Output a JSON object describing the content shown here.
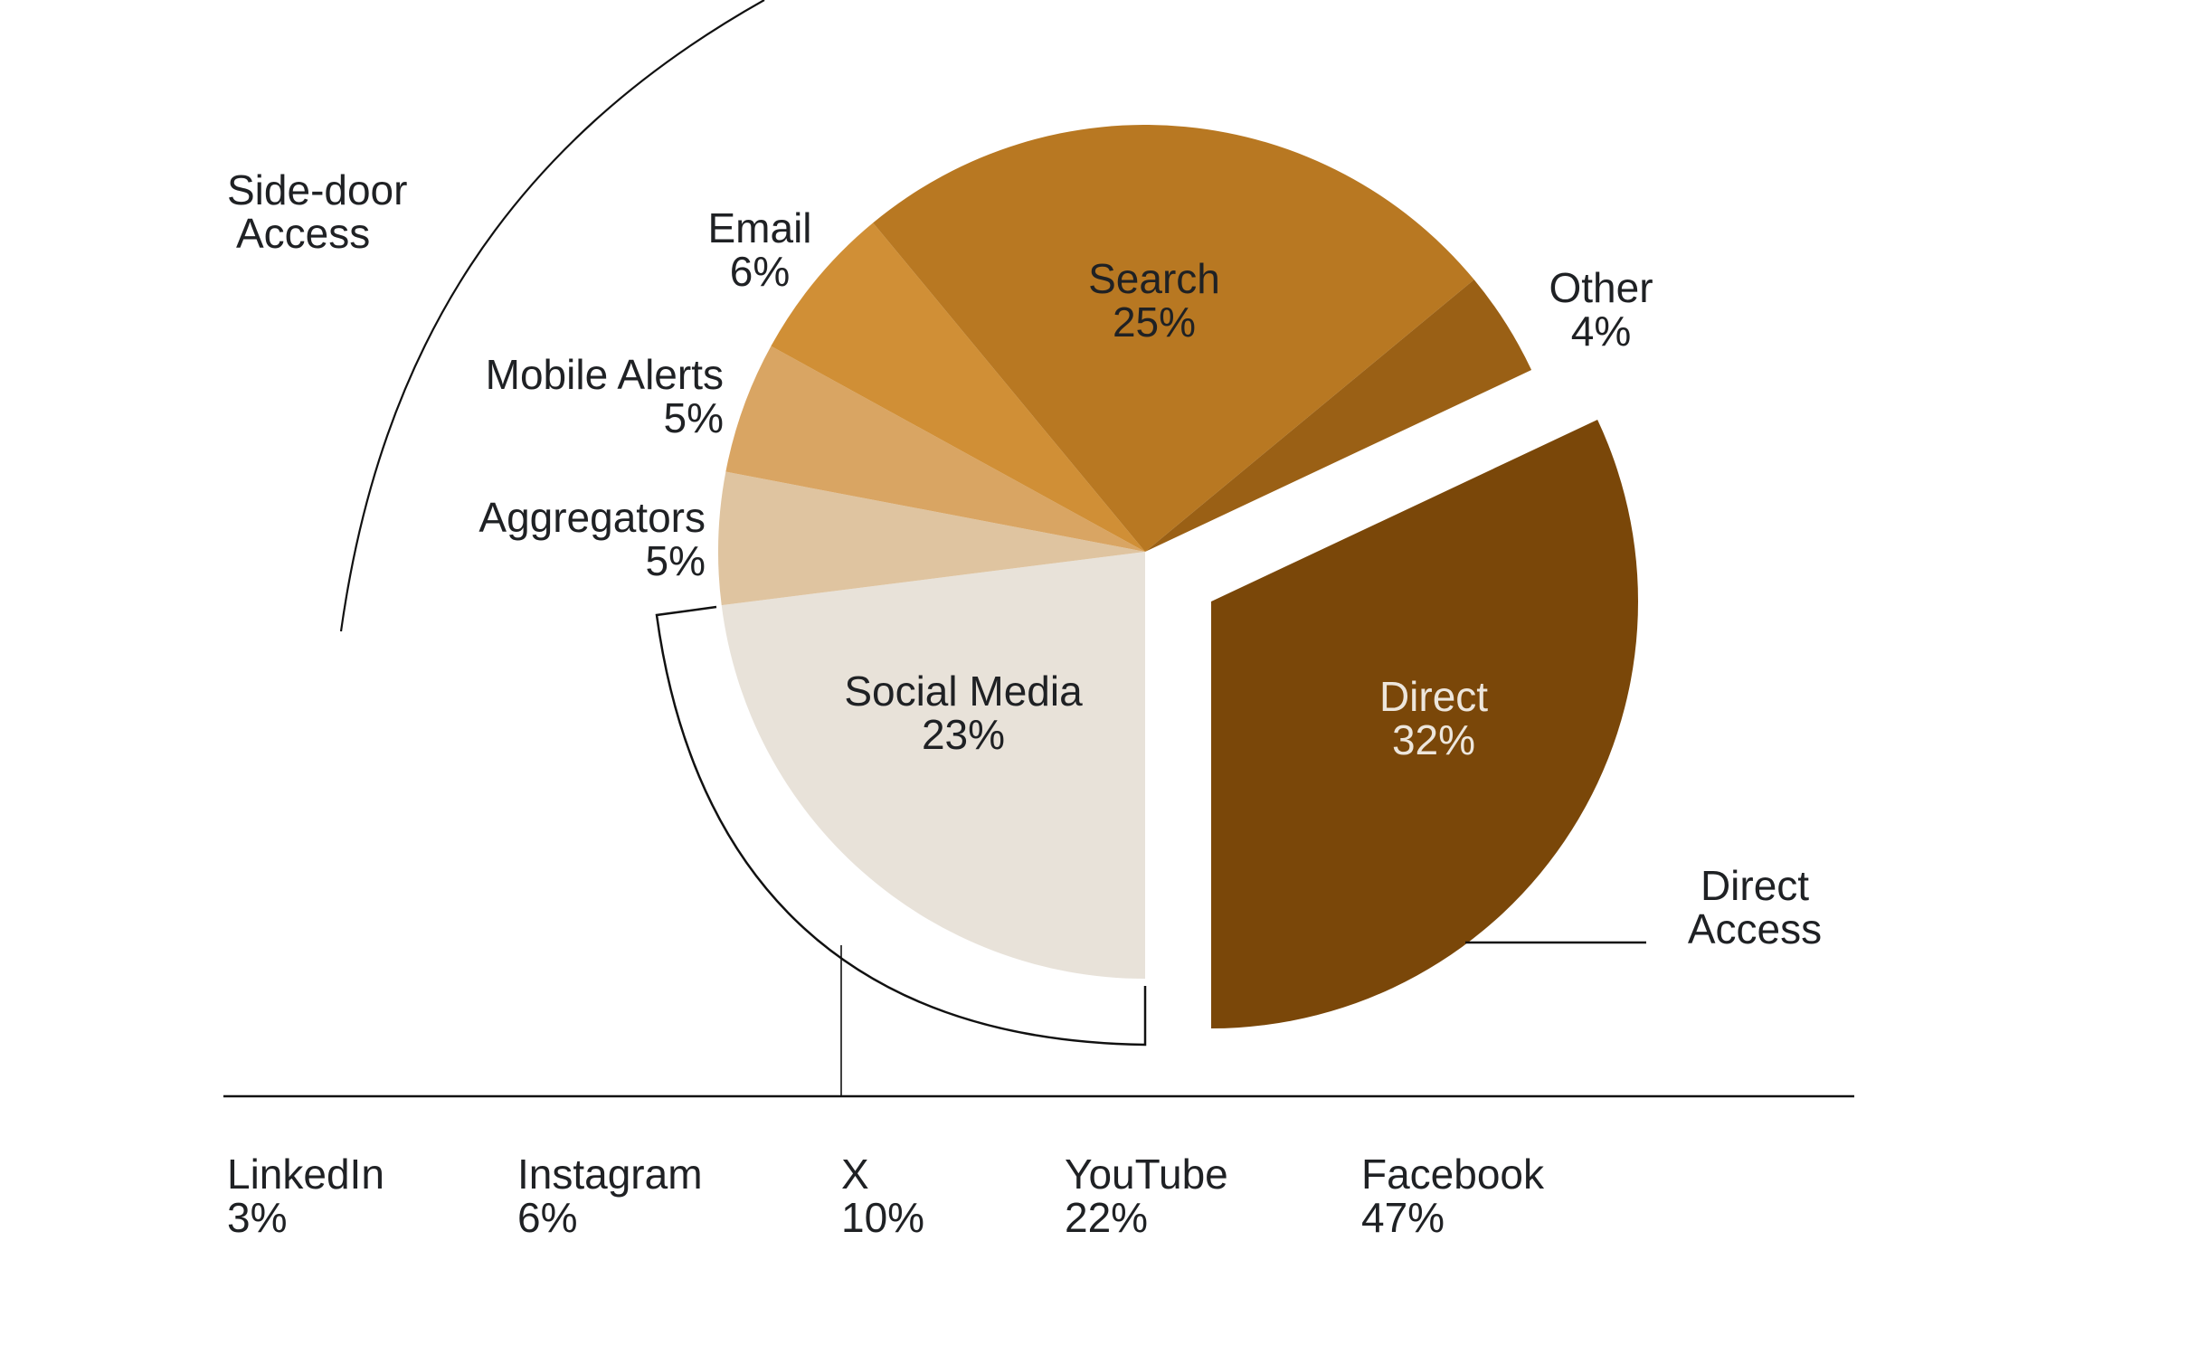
{
  "chart_data": {
    "type": "pie",
    "title": "",
    "center": [
      1266,
      610
    ],
    "radius": 472,
    "start_angle_deg_clockwise_from_top": 64.8,
    "slices": [
      {
        "name": "Direct",
        "value": 32,
        "label": "32%",
        "color": "#7a4709",
        "exploded": true,
        "text_color": "#ede6dc"
      },
      {
        "name": "Social Media",
        "value": 23,
        "label": "23%",
        "color": "#e8e2d9",
        "text_color": "#1f2124"
      },
      {
        "name": "Aggregators",
        "value": 5,
        "label": "5%",
        "color": "#dfc4a0"
      },
      {
        "name": "Mobile Alerts",
        "value": 5,
        "label": "5%",
        "color": "#d9a563"
      },
      {
        "name": "Email",
        "value": 6,
        "label": "6%",
        "color": "#d08f36"
      },
      {
        "name": "Search",
        "value": 25,
        "label": "25%",
        "color": "#b87822"
      },
      {
        "name": "Other",
        "value": 4,
        "label": "4%",
        "color": "#9a6015"
      }
    ],
    "groups": [
      {
        "name": "Side-door Access",
        "members": [
          "Aggregators",
          "Mobile Alerts",
          "Email",
          "Search",
          "Other"
        ]
      },
      {
        "name": "Direct Access",
        "members": [
          "Direct"
        ]
      }
    ],
    "social_media_breakdown": {
      "categories": [
        "LinkedIn",
        "Instagram",
        "X",
        "YouTube",
        "Facebook"
      ],
      "values": [
        3,
        6,
        10,
        22,
        47
      ],
      "labels": [
        "3%",
        "6%",
        "10%",
        "22%",
        "47%"
      ]
    },
    "legend": "none"
  },
  "labels": {
    "side_door": {
      "line1": "Side-door",
      "line2": "Access"
    },
    "direct_access": {
      "line1": "Direct",
      "line2": "Access"
    },
    "email": {
      "name": "Email",
      "pct": "6%"
    },
    "mobile": {
      "name": "Mobile Alerts",
      "pct": "5%"
    },
    "aggregators": {
      "name": "Aggregators",
      "pct": "5%"
    },
    "search": {
      "name": "Search",
      "pct": "25%"
    },
    "other": {
      "name": "Other",
      "pct": "4%"
    },
    "social": {
      "name": "Social Media",
      "pct": "23%"
    },
    "direct": {
      "name": "Direct",
      "pct": "32%"
    }
  },
  "breakdown": [
    {
      "name": "LinkedIn",
      "pct": "3%"
    },
    {
      "name": "Instagram",
      "pct": "6%"
    },
    {
      "name": "X",
      "pct": "10%"
    },
    {
      "name": "YouTube",
      "pct": "22%"
    },
    {
      "name": "Facebook",
      "pct": "47%"
    }
  ]
}
